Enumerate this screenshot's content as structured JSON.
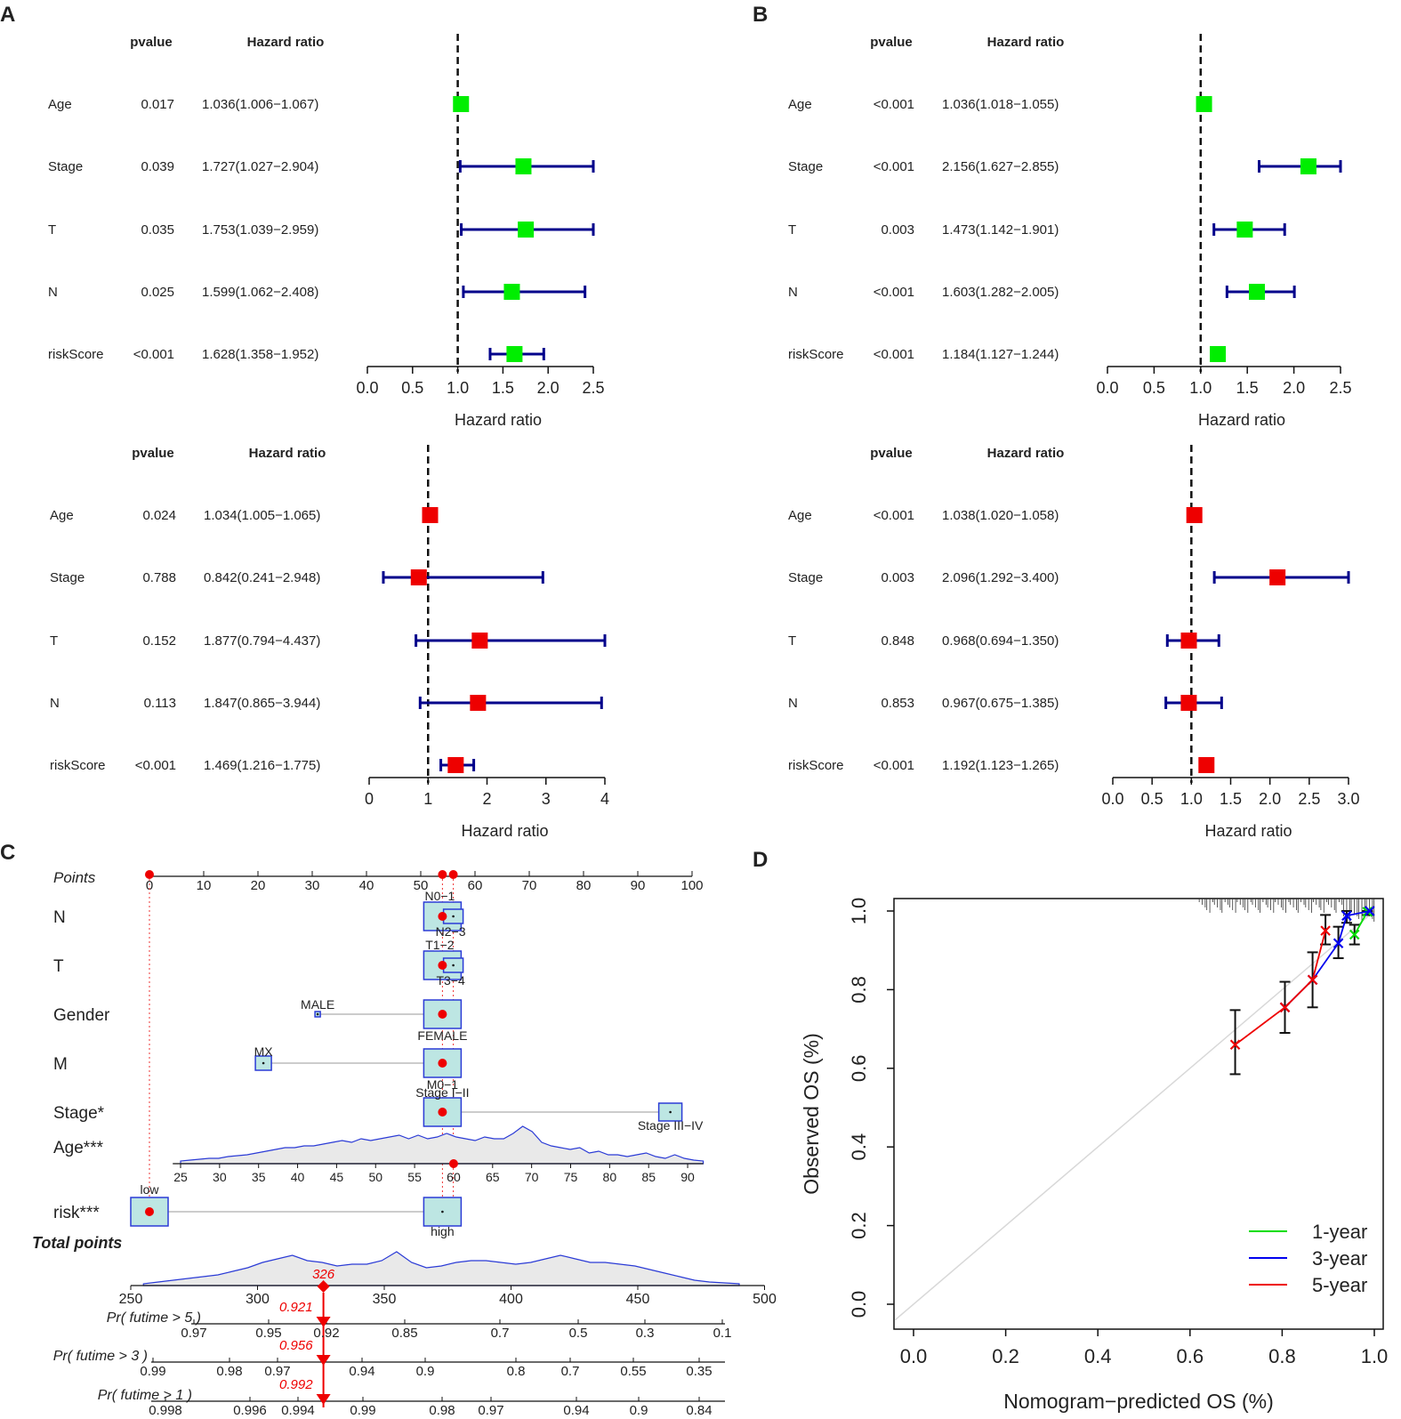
{
  "panel_letters": {
    "A": "A",
    "B": "B",
    "C": "C",
    "D": "D"
  },
  "forest_headers": {
    "pvalue": "pvalue",
    "hr": "Hazard ratio"
  },
  "chart_data": [
    {
      "id": "A-top",
      "type": "forest",
      "xlabel": "Hazard ratio",
      "xlim": [
        0,
        2.5
      ],
      "ticks": [
        "0.0",
        "0.5",
        "1.0",
        "1.5",
        "2.0",
        "2.5"
      ],
      "ref_line": 1,
      "marker_color": "#00ee00",
      "rows": [
        {
          "label": "Age",
          "pvalue": "0.017",
          "hr_text": "1.036(1.006−1.067)",
          "hr": 1.036,
          "lo": 1.006,
          "hi": 1.067
        },
        {
          "label": "Stage",
          "pvalue": "0.039",
          "hr_text": "1.727(1.027−2.904)",
          "hr": 1.727,
          "lo": 1.027,
          "hi": 2.904
        },
        {
          "label": "T",
          "pvalue": "0.035",
          "hr_text": "1.753(1.039−2.959)",
          "hr": 1.753,
          "lo": 1.039,
          "hi": 2.959
        },
        {
          "label": "N",
          "pvalue": "0.025",
          "hr_text": "1.599(1.062−2.408)",
          "hr": 1.599,
          "lo": 1.062,
          "hi": 2.408
        },
        {
          "label": "riskScore",
          "pvalue": "<0.001",
          "hr_text": "1.628(1.358−1.952)",
          "hr": 1.628,
          "lo": 1.358,
          "hi": 1.952
        }
      ]
    },
    {
      "id": "B-top",
      "type": "forest",
      "xlabel": "Hazard ratio",
      "xlim": [
        0,
        2.5
      ],
      "ticks": [
        "0.0",
        "0.5",
        "1.0",
        "1.5",
        "2.0",
        "2.5"
      ],
      "ref_line": 1,
      "marker_color": "#00ee00",
      "rows": [
        {
          "label": "Age",
          "pvalue": "<0.001",
          "hr_text": "1.036(1.018−1.055)",
          "hr": 1.036,
          "lo": 1.018,
          "hi": 1.055
        },
        {
          "label": "Stage",
          "pvalue": "<0.001",
          "hr_text": "2.156(1.627−2.855)",
          "hr": 2.156,
          "lo": 1.627,
          "hi": 2.855
        },
        {
          "label": "T",
          "pvalue": "0.003",
          "hr_text": "1.473(1.142−1.901)",
          "hr": 1.473,
          "lo": 1.142,
          "hi": 1.901
        },
        {
          "label": "N",
          "pvalue": "<0.001",
          "hr_text": "1.603(1.282−2.005)",
          "hr": 1.603,
          "lo": 1.282,
          "hi": 2.005
        },
        {
          "label": "riskScore",
          "pvalue": "<0.001",
          "hr_text": "1.184(1.127−1.244)",
          "hr": 1.184,
          "lo": 1.127,
          "hi": 1.244
        }
      ]
    },
    {
      "id": "A-bottom",
      "type": "forest",
      "xlabel": "Hazard ratio",
      "xlim": [
        0,
        4
      ],
      "ticks": [
        "0",
        "1",
        "2",
        "3",
        "4"
      ],
      "ref_line": 1,
      "marker_color": "#ee0000",
      "rows": [
        {
          "label": "Age",
          "pvalue": "0.024",
          "hr_text": "1.034(1.005−1.065)",
          "hr": 1.034,
          "lo": 1.005,
          "hi": 1.065
        },
        {
          "label": "Stage",
          "pvalue": "0.788",
          "hr_text": "0.842(0.241−2.948)",
          "hr": 0.842,
          "lo": 0.241,
          "hi": 2.948
        },
        {
          "label": "T",
          "pvalue": "0.152",
          "hr_text": "1.877(0.794−4.437)",
          "hr": 1.877,
          "lo": 0.794,
          "hi": 4.437
        },
        {
          "label": "N",
          "pvalue": "0.113",
          "hr_text": "1.847(0.865−3.944)",
          "hr": 1.847,
          "lo": 0.865,
          "hi": 3.944
        },
        {
          "label": "riskScore",
          "pvalue": "<0.001",
          "hr_text": "1.469(1.216−1.775)",
          "hr": 1.469,
          "lo": 1.216,
          "hi": 1.775
        }
      ]
    },
    {
      "id": "B-bottom",
      "type": "forest",
      "xlabel": "Hazard ratio",
      "xlim": [
        0,
        3
      ],
      "ticks": [
        "0.0",
        "0.5",
        "1.0",
        "1.5",
        "2.0",
        "2.5",
        "3.0"
      ],
      "ref_line": 1,
      "marker_color": "#ee0000",
      "rows": [
        {
          "label": "Age",
          "pvalue": "<0.001",
          "hr_text": "1.038(1.020−1.058)",
          "hr": 1.038,
          "lo": 1.02,
          "hi": 1.058
        },
        {
          "label": "Stage",
          "pvalue": "0.003",
          "hr_text": "2.096(1.292−3.400)",
          "hr": 2.096,
          "lo": 1.292,
          "hi": 3.4
        },
        {
          "label": "T",
          "pvalue": "0.848",
          "hr_text": "0.968(0.694−1.350)",
          "hr": 0.968,
          "lo": 0.694,
          "hi": 1.35
        },
        {
          "label": "N",
          "pvalue": "0.853",
          "hr_text": "0.967(0.675−1.385)",
          "hr": 0.967,
          "lo": 0.675,
          "hi": 1.385
        },
        {
          "label": "riskScore",
          "pvalue": "<0.001",
          "hr_text": "1.192(1.123−1.265)",
          "hr": 1.192,
          "lo": 1.123,
          "hi": 1.265
        }
      ]
    },
    {
      "id": "C",
      "type": "nomogram",
      "points_label": "Points",
      "points_ticks": [
        0,
        10,
        20,
        30,
        40,
        50,
        60,
        70,
        80,
        90,
        100
      ],
      "selected_points": [
        0,
        54,
        56
      ],
      "variables": [
        {
          "label": "N",
          "levels": [
            {
              "name": "N0−1",
              "points": 54
            },
            {
              "name": "N2−3",
              "points": 56
            }
          ]
        },
        {
          "label": "T",
          "levels": [
            {
              "name": "T1−2",
              "points": 54
            },
            {
              "name": "T3−4",
              "points": 56
            }
          ]
        },
        {
          "label": "Gender",
          "levels": [
            {
              "name": "MALE",
              "points": 31
            },
            {
              "name": "FEMALE",
              "points": 54
            }
          ]
        },
        {
          "label": "M",
          "levels": [
            {
              "name": "MX",
              "points": 21
            },
            {
              "name": "M0−1",
              "points": 54
            }
          ]
        },
        {
          "label": "Stage*",
          "levels": [
            {
              "name": "Stage I−II",
              "points": 54
            },
            {
              "name": "Stage III−IV",
              "points": 96
            }
          ]
        },
        {
          "label": "risk***",
          "levels": [
            {
              "name": "low",
              "points": 0
            },
            {
              "name": "high",
              "points": 54
            }
          ]
        }
      ],
      "age_label": "Age***",
      "age_ticks": [
        25,
        30,
        35,
        40,
        45,
        50,
        55,
        60,
        65,
        70,
        75,
        80,
        85,
        90
      ],
      "age_selected": 60,
      "total_label": "Total points",
      "total_ticks": [
        250,
        300,
        350,
        400,
        450,
        500
      ],
      "total_value": "326",
      "prob_axes": [
        {
          "label": "Pr( futime > 5 )",
          "ticks": [
            "0.97",
            "0.95",
            "0.92",
            "0.85",
            "0.7",
            "0.5",
            "0.3",
            "0.1"
          ],
          "value": "0.921"
        },
        {
          "label": "Pr( futime > 3 )",
          "ticks": [
            "0.99",
            "0.98",
            "0.97",
            "0.94",
            "0.9",
            "0.8",
            "0.7",
            "0.55",
            "0.35"
          ],
          "value": "0.956"
        },
        {
          "label": "Pr( futime > 1 )",
          "ticks": [
            "0.998",
            "0.996",
            "0.994",
            "0.99",
            "0.98",
            "0.97",
            "0.94",
            "0.9",
            "0.84"
          ],
          "value": "0.992"
        }
      ]
    },
    {
      "id": "D",
      "type": "calibration",
      "xlabel": "Nomogram−predicted OS (%)",
      "ylabel": "Observed OS (%)",
      "xlim": [
        0,
        1
      ],
      "ylim": [
        0,
        1
      ],
      "ticks": [
        "0.0",
        "0.2",
        "0.4",
        "0.6",
        "0.8",
        "1.0"
      ],
      "series": [
        {
          "name": "1-year",
          "color": "#00dd00",
          "points": [
            [
              0.957,
              0.94
            ],
            [
              0.985,
              0.998
            ]
          ],
          "err": [
            [
              0.957,
              0.915,
              0.965
            ],
            [
              0.985,
              0.99,
              1.0
            ]
          ]
        },
        {
          "name": "3-year",
          "color": "#0000ee",
          "points": [
            [
              0.806,
              0.755
            ],
            [
              0.866,
              0.825
            ],
            [
              0.922,
              0.918
            ],
            [
              0.94,
              0.988
            ],
            [
              0.99,
              1.0
            ]
          ],
          "err": [
            [
              0.806,
              0.69,
              0.82
            ],
            [
              0.866,
              0.755,
              0.895
            ],
            [
              0.922,
              0.88,
              0.96
            ],
            [
              0.94,
              0.97,
              1.0
            ]
          ]
        },
        {
          "name": "5-year",
          "color": "#ee0000",
          "points": [
            [
              0.698,
              0.66
            ],
            [
              0.806,
              0.755
            ],
            [
              0.866,
              0.825
            ],
            [
              0.894,
              0.95
            ]
          ],
          "err": [
            [
              0.698,
              0.585,
              0.748
            ],
            [
              0.894,
              0.915,
              0.99
            ]
          ]
        }
      ]
    }
  ]
}
